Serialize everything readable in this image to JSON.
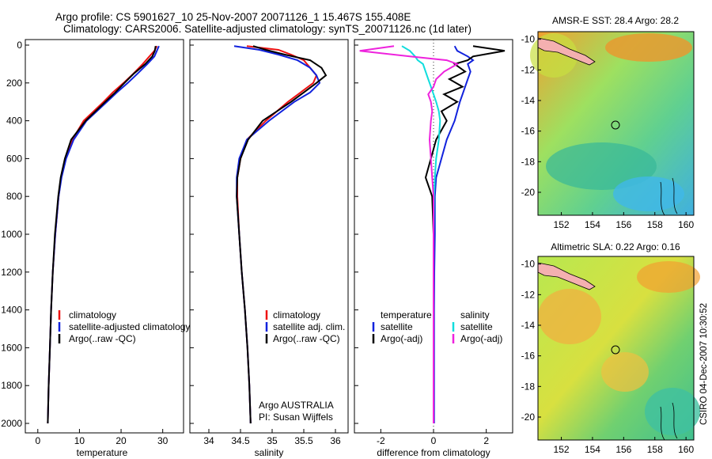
{
  "header": {
    "line1": "Argo profile: CS 5901627_10 25-Nov-2007 20071126_1 15.467S 155.408E",
    "line2": "Climatology: CARS2006. Satellite-adjusted climatology: synTS_20071126.nc (1d later)"
  },
  "footer": {
    "agency": "Argo AUSTRALIA",
    "pi": "PI: Susan Wijffels",
    "stamp": "CSIRO 04-Dec-2007 10:30:52"
  },
  "colors": {
    "climatology": "#ee1111",
    "satellite": "#1122dd",
    "argo": "#000000",
    "satellite_salinity": "#11dddd",
    "argo_adj": "#ee22dd"
  },
  "chart_data": [
    {
      "type": "line",
      "panel": "temperature",
      "xlabel": "temperature",
      "ylabel": "",
      "xlim": [
        -3,
        35
      ],
      "ylim": [
        2050,
        0
      ],
      "y_inverted": true,
      "xticks": [
        "0",
        "10",
        "20",
        "30"
      ],
      "yticks": [
        "0",
        "200",
        "400",
        "600",
        "800",
        "1000",
        "1200",
        "1400",
        "1600",
        "1800",
        "2000"
      ],
      "legend": [
        "climatology",
        "satellite-adjusted climatology",
        "Argo(..raw -QC)"
      ],
      "depth": [
        5,
        30,
        60,
        100,
        150,
        200,
        250,
        300,
        400,
        500,
        600,
        700,
        800,
        1000,
        1200,
        1400,
        1600,
        1800,
        2000
      ],
      "series": [
        {
          "name": "climatology",
          "color": "red",
          "values": [
            28.6,
            28.0,
            26.8,
            25.2,
            23.0,
            20.6,
            18.0,
            15.8,
            11.0,
            8.3,
            6.6,
            5.6,
            5.0,
            4.2,
            3.6,
            3.2,
            2.9,
            2.6,
            2.4
          ]
        },
        {
          "name": "satellite-adjusted climatology",
          "color": "blue",
          "values": [
            29.1,
            28.6,
            28.0,
            26.3,
            24.0,
            21.6,
            19.0,
            16.6,
            11.7,
            8.6,
            6.8,
            5.7,
            5.0,
            4.2,
            3.6,
            3.2,
            2.9,
            2.6,
            2.4
          ]
        },
        {
          "name": "Argo(..raw -QC)",
          "color": "black",
          "values": [
            28.3,
            28.1,
            27.5,
            25.8,
            23.1,
            20.8,
            18.6,
            16.2,
            11.5,
            8.0,
            6.5,
            5.5,
            4.9,
            4.1,
            3.6,
            3.2,
            2.9,
            2.6,
            2.4
          ]
        }
      ]
    },
    {
      "type": "line",
      "panel": "salinity",
      "xlabel": "salinity",
      "ylabel": "",
      "xlim": [
        33.7,
        36.2
      ],
      "ylim": [
        2050,
        0
      ],
      "y_inverted": true,
      "xticks": [
        "34",
        "34.5",
        "35",
        "35.5",
        "36"
      ],
      "legend": [
        "climatology",
        "satellite adj. clim.",
        "Argo(..raw -QC)"
      ],
      "depth": [
        5,
        25,
        50,
        80,
        120,
        160,
        200,
        250,
        300,
        400,
        500,
        600,
        700,
        800,
        1000,
        1200,
        1400,
        1600,
        1800,
        2000
      ],
      "series": [
        {
          "name": "climatology",
          "color": "red",
          "values": [
            34.6,
            35.1,
            35.3,
            35.5,
            35.6,
            35.7,
            35.65,
            35.45,
            35.25,
            34.9,
            34.6,
            34.5,
            34.45,
            34.45,
            34.48,
            34.52,
            34.57,
            34.61,
            34.64,
            34.66
          ]
        },
        {
          "name": "satellite adj. clim.",
          "color": "blue",
          "values": [
            34.4,
            34.8,
            35.1,
            35.4,
            35.6,
            35.7,
            35.75,
            35.6,
            35.35,
            34.95,
            34.6,
            34.48,
            34.44,
            34.44,
            34.48,
            34.52,
            34.57,
            34.61,
            34.64,
            34.66
          ]
        },
        {
          "name": "Argo(..raw -QC)",
          "color": "black",
          "values": [
            34.7,
            34.9,
            35.2,
            35.6,
            35.78,
            35.85,
            35.7,
            35.5,
            35.3,
            34.85,
            34.62,
            34.5,
            34.45,
            34.44,
            34.48,
            34.52,
            34.57,
            34.61,
            34.64,
            34.66
          ]
        }
      ]
    },
    {
      "type": "line",
      "panel": "difference",
      "xlabel": "difference from climatology",
      "ylabel": "",
      "xlim": [
        -3,
        3
      ],
      "ylim": [
        2050,
        0
      ],
      "y_inverted": true,
      "xticks": [
        "-2",
        "0",
        "2"
      ],
      "legend_groups": [
        {
          "title": "temperature",
          "items": [
            "satellite",
            "Argo(-adj)"
          ]
        },
        {
          "title": "salinity",
          "items": [
            "satellite",
            "Argo(-adj)"
          ]
        }
      ],
      "depth": [
        5,
        30,
        60,
        80,
        100,
        140,
        180,
        220,
        260,
        300,
        350,
        400,
        500,
        600,
        700,
        800,
        1000,
        1200,
        1400,
        1600,
        1800,
        2000
      ],
      "series": [
        {
          "name": "satellite",
          "group": "temperature",
          "color": "blue",
          "values": [
            0.8,
            0.9,
            1.3,
            1.5,
            1.3,
            1.4,
            1.3,
            1.2,
            1.1,
            1.0,
            0.9,
            0.8,
            0.5,
            0.3,
            0.1,
            0.05,
            0.05,
            0.03,
            0.02,
            0.02,
            0.02,
            0.02
          ]
        },
        {
          "name": "Argo(-adj)",
          "group": "temperature",
          "color": "black",
          "values": [
            1.5,
            2.7,
            1.5,
            1.3,
            0.8,
            1.2,
            0.6,
            1.1,
            0.4,
            0.9,
            0.3,
            0.5,
            0.1,
            -0.1,
            -0.3,
            -0.05,
            0.0,
            0.0,
            0.0,
            0.0,
            0.0,
            0.0
          ]
        },
        {
          "name": "satellite",
          "group": "salinity",
          "color": "cyan",
          "values": [
            -1.2,
            -0.9,
            -0.7,
            -0.6,
            -0.4,
            -0.3,
            -0.2,
            -0.1,
            0.0,
            0.1,
            0.2,
            0.25,
            0.2,
            0.1,
            0.05,
            0.02,
            0.0,
            0.0,
            0.0,
            0.0,
            0.0,
            0.0
          ]
        },
        {
          "name": "Argo(-adj)",
          "group": "salinity",
          "color": "magenta",
          "values": [
            -1.5,
            -2.8,
            -0.9,
            0.5,
            0.9,
            0.4,
            0.1,
            0.0,
            -0.2,
            -0.1,
            -0.05,
            -0.1,
            -0.15,
            -0.1,
            -0.05,
            0.0,
            0.0,
            0.0,
            0.0,
            0.0,
            0.0,
            0.0
          ]
        }
      ]
    },
    {
      "type": "heatmap",
      "panel": "sst_map",
      "title": "AMSR-E SST: 28.4 Argo: 28.2",
      "xlim": [
        150.5,
        160.5
      ],
      "ylim": [
        -21.5,
        -9.5
      ],
      "xticks": [
        "152",
        "154",
        "156",
        "158",
        "160"
      ],
      "yticks": [
        "-10",
        "-12",
        "-14",
        "-16",
        "-18",
        "-20"
      ],
      "marker": {
        "lon": 155.408,
        "lat": -15.467
      }
    },
    {
      "type": "heatmap",
      "panel": "sla_map",
      "title": "Altimetric SLA: 0.22 Argo: 0.16",
      "xlim": [
        150.5,
        160.5
      ],
      "ylim": [
        -21.5,
        -9.5
      ],
      "xticks": [
        "152",
        "154",
        "156",
        "158",
        "160"
      ],
      "yticks": [
        "-10",
        "-12",
        "-14",
        "-16",
        "-18",
        "-20"
      ],
      "marker": {
        "lon": 155.408,
        "lat": -15.467
      }
    }
  ]
}
